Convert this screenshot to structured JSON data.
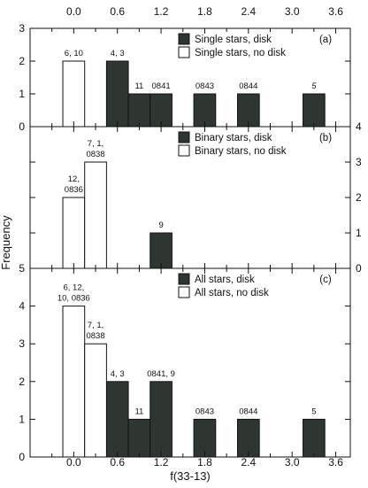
{
  "colors": {
    "disk": "#2f3632",
    "no_disk": "#ffffff",
    "axis": "#111111"
  },
  "chart_data": {
    "type": "bar",
    "xlabel": "f(33-13)",
    "ylabel": "Frequency",
    "xlim": [
      -0.6,
      3.8
    ],
    "bin_width": 0.3,
    "x_ticks": [
      "0.0",
      "0.6",
      "1.2",
      "1.8",
      "2.4",
      "3.0",
      "3.6"
    ],
    "x_tick_values": [
      0.0,
      0.6,
      1.2,
      1.8,
      2.4,
      3.0,
      3.6
    ],
    "panels": [
      {
        "tag": "(a)",
        "ylim": [
          0,
          3
        ],
        "left_ticks": [
          "0",
          "1",
          "2",
          "3"
        ],
        "right_ticks": [],
        "legend": [
          "Single stars, disk",
          "Single stars, no disk"
        ],
        "series": [
          {
            "name": "Single stars, disk",
            "kind": "disk",
            "bars": [
              {
                "x": 0.6,
                "value": 2,
                "label": [
                  "4, 3"
                ]
              },
              {
                "x": 0.9,
                "value": 1,
                "label": [
                  "11"
                ]
              },
              {
                "x": 1.2,
                "value": 1,
                "label": [
                  "0841"
                ]
              },
              {
                "x": 1.8,
                "value": 1,
                "label": [
                  "0843"
                ]
              },
              {
                "x": 2.4,
                "value": 1,
                "label": [
                  "0844"
                ]
              },
              {
                "x": 3.3,
                "value": 1,
                "label": [
                  "5"
                ],
                "italic": true
              }
            ]
          },
          {
            "name": "Single stars, no disk",
            "kind": "no_disk",
            "bars": [
              {
                "x": 0.0,
                "value": 2,
                "label": [
                  "6, 10"
                ]
              }
            ]
          }
        ]
      },
      {
        "tag": "(b)",
        "ylim": [
          0,
          4
        ],
        "left_ticks": [
          "5"
        ],
        "right_ticks": [
          "0",
          "1",
          "2",
          "3",
          "4"
        ],
        "legend": [
          "Binary stars, disk",
          "Binary stars, no disk"
        ],
        "series": [
          {
            "name": "Binary stars, disk",
            "kind": "disk",
            "bars": [
              {
                "x": 1.2,
                "value": 1,
                "label": [
                  "9"
                ]
              }
            ]
          },
          {
            "name": "Binary stars, no disk",
            "kind": "no_disk",
            "bars": [
              {
                "x": 0.0,
                "value": 2,
                "label": [
                  "12,",
                  "0836"
                ]
              },
              {
                "x": 0.3,
                "value": 3,
                "label": [
                  "7, 1,",
                  "0838"
                ]
              }
            ]
          }
        ]
      },
      {
        "tag": "(c)",
        "ylim": [
          0,
          5
        ],
        "left_ticks": [
          "0",
          "1",
          "2",
          "3",
          "4"
        ],
        "right_ticks": [],
        "legend": [
          "All stars, disk",
          "All stars, no disk"
        ],
        "series": [
          {
            "name": "All stars, disk",
            "kind": "disk",
            "bars": [
              {
                "x": 0.6,
                "value": 2,
                "label": [
                  "4, 3"
                ]
              },
              {
                "x": 0.9,
                "value": 1,
                "label": [
                  "11"
                ]
              },
              {
                "x": 1.2,
                "value": 2,
                "label": [
                  "0841, 9"
                ]
              },
              {
                "x": 1.8,
                "value": 1,
                "label": [
                  "0843"
                ]
              },
              {
                "x": 2.4,
                "value": 1,
                "label": [
                  "0844"
                ]
              },
              {
                "x": 3.3,
                "value": 1,
                "label": [
                  "5"
                ]
              }
            ]
          },
          {
            "name": "All stars, no disk",
            "kind": "no_disk",
            "bars": [
              {
                "x": 0.0,
                "value": 4,
                "label": [
                  "6, 12,",
                  "10, 0836"
                ]
              },
              {
                "x": 0.3,
                "value": 3,
                "label": [
                  "7, 1,",
                  "0838"
                ]
              }
            ]
          }
        ]
      }
    ]
  }
}
